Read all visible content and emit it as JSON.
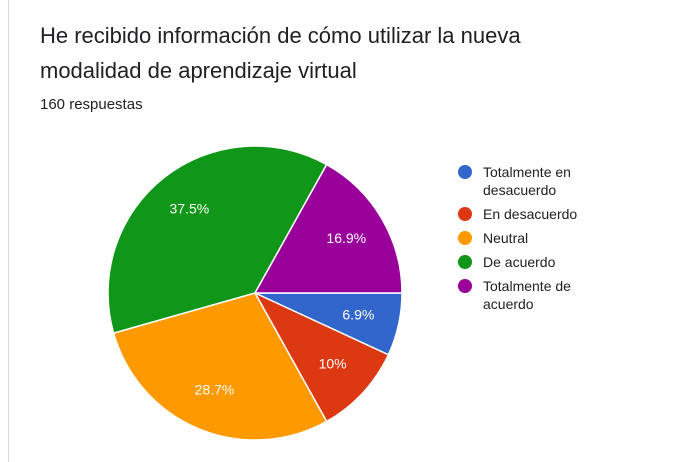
{
  "chart_data": {
    "type": "pie",
    "title": "He recibido información de cómo utilizar la nueva modalidad de aprendizaje virtual",
    "subtitle": "160 respuestas",
    "categories": [
      "Totalmente en desacuerdo",
      "En desacuerdo",
      "Neutral",
      "De acuerdo",
      "Totalmente de acuerdo"
    ],
    "values": [
      6.9,
      10,
      28.7,
      37.5,
      16.9
    ],
    "value_labels": [
      "6.9%",
      "10%",
      "28.7%",
      "37.5%",
      "16.9%"
    ],
    "colors": [
      "#3366cc",
      "#dc3912",
      "#ff9900",
      "#109618",
      "#990099"
    ],
    "legend": "right"
  }
}
